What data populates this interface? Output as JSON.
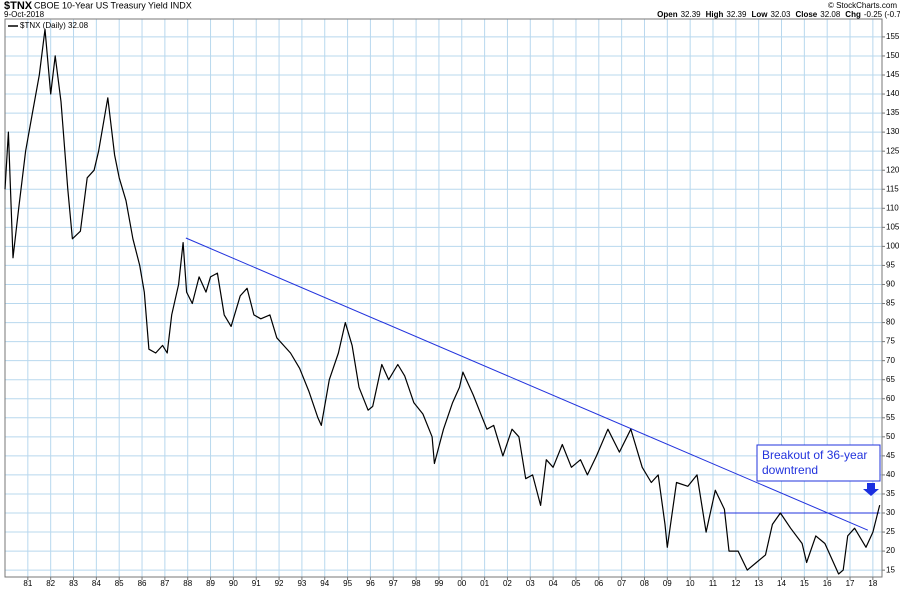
{
  "chart_data": {
    "type": "line",
    "symbol": "$TNX",
    "title": "CBOE 10-Year US Treasury Yield INDX",
    "date": "9-Oct-2018",
    "quote": [
      {
        "label": "Open",
        "value": 32.39
      },
      {
        "label": "High",
        "value": 32.39
      },
      {
        "label": "Low",
        "value": 32.03
      },
      {
        "label": "Close",
        "value": 32.08
      },
      {
        "label": "Chg",
        "value": "-0.25 (-0.77%)"
      }
    ],
    "source": "© StockCharts.com",
    "annotation": [
      "Breakout of 36-year",
      "downtrend"
    ],
    "grid": true,
    "xlim": [
      1980,
      2018.4
    ],
    "ylim": [
      13.2,
      159.7
    ],
    "xticks": [
      {
        "value": 1981,
        "label": "81"
      },
      {
        "value": 1982,
        "label": "82"
      },
      {
        "value": 1983,
        "label": "83"
      },
      {
        "value": 1984,
        "label": "84"
      },
      {
        "value": 1985,
        "label": "85"
      },
      {
        "value": 1986,
        "label": "86"
      },
      {
        "value": 1987,
        "label": "87"
      },
      {
        "value": 1988,
        "label": "88"
      },
      {
        "value": 1989,
        "label": "89"
      },
      {
        "value": 1990,
        "label": "90"
      },
      {
        "value": 1991,
        "label": "91"
      },
      {
        "value": 1992,
        "label": "92"
      },
      {
        "value": 1993,
        "label": "93"
      },
      {
        "value": 1994,
        "label": "94"
      },
      {
        "value": 1995,
        "label": "95"
      },
      {
        "value": 1996,
        "label": "96"
      },
      {
        "value": 1997,
        "label": "97"
      },
      {
        "value": 1998,
        "label": "98"
      },
      {
        "value": 1999,
        "label": "99"
      },
      {
        "value": 2000,
        "label": "00"
      },
      {
        "value": 2001,
        "label": "01"
      },
      {
        "value": 2002,
        "label": "02"
      },
      {
        "value": 2003,
        "label": "03"
      },
      {
        "value": 2004,
        "label": "04"
      },
      {
        "value": 2005,
        "label": "05"
      },
      {
        "value": 2006,
        "label": "06"
      },
      {
        "value": 2007,
        "label": "07"
      },
      {
        "value": 2008,
        "label": "08"
      },
      {
        "value": 2009,
        "label": "09"
      },
      {
        "value": 2010,
        "label": "10"
      },
      {
        "value": 2011,
        "label": "11"
      },
      {
        "value": 2012,
        "label": "12"
      },
      {
        "value": 2013,
        "label": "13"
      },
      {
        "value": 2014,
        "label": "14"
      },
      {
        "value": 2015,
        "label": "15"
      },
      {
        "value": 2016,
        "label": "16"
      },
      {
        "value": 2017,
        "label": "17"
      },
      {
        "value": 2018,
        "label": "18"
      }
    ],
    "yticks": [
      15,
      20,
      25,
      30,
      35,
      40,
      45,
      50,
      55,
      60,
      65,
      70,
      75,
      80,
      85,
      90,
      95,
      100,
      105,
      110,
      115,
      120,
      125,
      130,
      135,
      140,
      145,
      150,
      155
    ],
    "x": [
      1980.0,
      1980.15,
      1980.35,
      1980.6,
      1980.9,
      1981.2,
      1981.5,
      1981.75,
      1982.0,
      1982.2,
      1982.45,
      1982.75,
      1982.95,
      1983.3,
      1983.6,
      1983.9,
      1984.1,
      1984.5,
      1984.8,
      1985.0,
      1985.3,
      1985.6,
      1985.9,
      1986.1,
      1986.3,
      1986.6,
      1986.9,
      1987.1,
      1987.3,
      1987.6,
      1987.8,
      1987.95,
      1988.2,
      1988.5,
      1988.8,
      1989.0,
      1989.3,
      1989.6,
      1989.9,
      1990.3,
      1990.6,
      1990.9,
      1991.2,
      1991.6,
      1991.9,
      1992.2,
      1992.5,
      1992.9,
      1993.3,
      1993.7,
      1993.85,
      1994.2,
      1994.6,
      1994.9,
      1995.2,
      1995.5,
      1995.9,
      1996.1,
      1996.5,
      1996.8,
      1997.2,
      1997.5,
      1997.9,
      1998.3,
      1998.7,
      1998.8,
      1999.2,
      1999.6,
      1999.9,
      2000.05,
      2000.5,
      2000.9,
      2001.1,
      2001.4,
      2001.8,
      2002.2,
      2002.5,
      2002.8,
      2003.1,
      2003.45,
      2003.7,
      2004.0,
      2004.4,
      2004.8,
      2005.2,
      2005.5,
      2005.9,
      2006.4,
      2006.9,
      2007.4,
      2007.9,
      2008.3,
      2008.6,
      2008.9,
      2009.0,
      2009.4,
      2009.9,
      2010.3,
      2010.7,
      2011.1,
      2011.5,
      2011.7,
      2012.1,
      2012.5,
      2012.9,
      2013.3,
      2013.6,
      2013.95,
      2014.4,
      2014.9,
      2015.1,
      2015.5,
      2015.9,
      2016.5,
      2016.7,
      2016.9,
      2017.2,
      2017.7,
      2018.0,
      2018.3
    ],
    "series": [
      {
        "name": "$TNX (Daily) 32.08",
        "color": "#000000",
        "values": [
          115,
          130,
          97,
          110,
          125,
          135,
          145,
          157,
          140,
          150,
          138,
          115,
          102,
          104,
          118,
          120,
          125,
          139,
          124,
          118,
          112,
          102,
          95,
          88,
          73,
          72,
          74,
          72,
          82,
          90,
          101,
          88,
          85,
          92,
          88,
          92,
          93,
          82,
          79,
          87,
          89,
          82,
          81,
          82,
          76,
          74,
          72,
          68,
          62,
          55,
          53,
          65,
          72,
          80,
          74,
          63,
          57,
          58,
          69,
          65,
          69,
          66,
          59,
          56,
          50,
          43,
          52,
          59,
          63,
          67,
          61,
          55,
          52,
          53,
          45,
          52,
          50,
          39,
          40,
          32,
          44,
          42,
          48,
          42,
          44,
          40,
          45,
          52,
          46,
          52,
          42,
          38,
          40,
          27,
          21,
          38,
          37,
          40,
          25,
          36,
          31,
          20,
          20,
          15,
          17,
          19,
          27,
          30,
          26,
          22,
          17,
          24,
          22,
          14,
          15,
          24,
          26,
          21,
          25,
          32.08
        ]
      }
    ],
    "trendlines": [
      {
        "color": "#2233dd",
        "x": [
          1987.92,
          2017.78
        ],
        "y": [
          102.2,
          25.5
        ]
      },
      {
        "color": "#2233dd",
        "x": [
          2011.3,
          2018.3
        ],
        "y": [
          30,
          30
        ]
      }
    ]
  }
}
